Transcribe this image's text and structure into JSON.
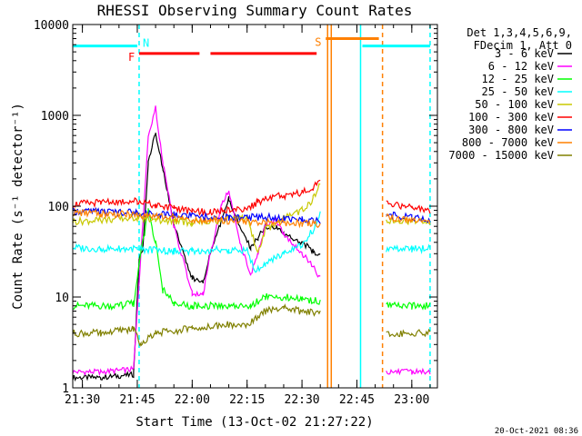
{
  "chart_data": {
    "type": "line",
    "title": "RHESSI Observing Summary Count Rates",
    "xlabel": "Start Time (13-Oct-02 21:27:22)",
    "ylabel": "Count Rate (s⁻¹ detector⁻¹)",
    "y_scale": "log",
    "xlim": [
      "21:27:22",
      "23:07:00"
    ],
    "ylim": [
      1,
      10000
    ],
    "x_ticks": [
      "21:30",
      "21:45",
      "22:00",
      "22:15",
      "22:30",
      "22:45",
      "23:00"
    ],
    "y_ticks": [
      "1",
      "10",
      "100",
      "1000",
      "10000"
    ],
    "legend_position": "top-right",
    "legend_header": [
      "Det 1,3,4,5,6,9,",
      "FDecim 1, Att 0"
    ],
    "timestamp": "20-Oct-2021 08:36",
    "flags": [
      {
        "label": "N",
        "color": "#00ffff",
        "level": 5800,
        "segments": [
          [
            "21:27:22",
            "21:45:00"
          ],
          [
            "22:46:30",
            "23:05:00"
          ]
        ]
      },
      {
        "label": "F",
        "color": "#ff0000",
        "level": 4800,
        "segments": [
          [
            "21:45:30",
            "22:02:00"
          ],
          [
            "22:05:00",
            "22:34:00"
          ]
        ]
      },
      {
        "label": "S",
        "color": "#ff8000",
        "level": 7000,
        "segments": [
          [
            "22:36:30",
            "22:51:00"
          ]
        ]
      }
    ],
    "vertical_markers": [
      {
        "time": "21:45:30",
        "color": "#00ffff",
        "style": "dashed"
      },
      {
        "time": "22:37:00",
        "color": "#ff8000",
        "style": "solid"
      },
      {
        "time": "22:38:00",
        "color": "#ff8000",
        "style": "solid"
      },
      {
        "time": "22:46:00",
        "color": "#00ffff",
        "style": "solid"
      },
      {
        "time": "22:52:00",
        "color": "#ff8000",
        "style": "dashed"
      },
      {
        "time": "23:05:00",
        "color": "#00ffff",
        "style": "dashed"
      }
    ],
    "series": [
      {
        "name": "3 - 6 keV",
        "color": "#000000",
        "x": [
          "21:27:22",
          "21:35",
          "21:44",
          "21:45:30",
          "21:46:30",
          "21:48",
          "21:50",
          "21:52",
          "21:55",
          "22:00",
          "22:03",
          "22:05",
          "22:08",
          "22:10",
          "22:13",
          "22:16",
          "22:18",
          "22:20",
          "22:23",
          "22:25",
          "22:30",
          "22:33",
          "22:35",
          "22:53",
          "23:00",
          "23:05"
        ],
        "y": [
          1.3,
          1.3,
          1.4,
          26,
          32,
          300,
          650,
          250,
          65,
          16,
          15,
          30,
          70,
          120,
          60,
          35,
          45,
          60,
          60,
          50,
          40,
          32,
          28,
          null,
          null,
          null
        ]
      },
      {
        "name": "6 - 12 keV",
        "color": "#ff00ff",
        "x": [
          "21:27:22",
          "21:35",
          "21:44",
          "21:46",
          "21:48",
          "21:50",
          "21:52",
          "21:55",
          "22:00",
          "22:03",
          "22:05",
          "22:08",
          "22:10",
          "22:13",
          "22:16",
          "22:18",
          "22:20",
          "22:23",
          "22:25",
          "22:30",
          "22:33",
          "22:35",
          "22:53",
          "23:00",
          "23:05"
        ],
        "y": [
          1.5,
          1.5,
          1.6,
          30,
          600,
          1200,
          300,
          60,
          11,
          11,
          30,
          100,
          150,
          40,
          18,
          30,
          60,
          70,
          50,
          30,
          22,
          16,
          1.5,
          1.5,
          1.5
        ]
      },
      {
        "name": "12 - 25 keV",
        "color": "#00ff00",
        "x": [
          "21:27:22",
          "21:40",
          "21:44",
          "21:46",
          "21:48",
          "21:50",
          "21:52",
          "21:55",
          "22:00",
          "22:10",
          "22:16",
          "22:18",
          "22:20",
          "22:25",
          "22:30",
          "22:35",
          "22:53",
          "23:00",
          "23:05"
        ],
        "y": [
          8,
          8,
          8.5,
          30,
          90,
          40,
          12,
          8.5,
          8,
          8,
          8,
          9,
          10,
          10,
          9.5,
          9,
          8,
          8,
          8
        ]
      },
      {
        "name": "25 - 50 keV",
        "color": "#00ffff",
        "x": [
          "21:27:22",
          "21:35",
          "21:45",
          "21:50",
          "21:55",
          "22:00",
          "22:05",
          "22:10",
          "22:15",
          "22:17",
          "22:20",
          "22:25",
          "22:30",
          "22:33",
          "22:35",
          "22:53",
          "23:00",
          "23:05"
        ],
        "y": [
          35,
          34,
          34,
          33,
          32,
          32,
          33,
          33,
          33,
          20,
          23,
          30,
          38,
          55,
          80,
          34,
          34,
          34
        ]
      },
      {
        "name": "50 - 100 keV",
        "color": "#c8c800",
        "x": [
          "21:27:22",
          "21:35",
          "21:45",
          "21:50",
          "21:55",
          "22:00",
          "22:05",
          "22:10",
          "22:15",
          "22:18",
          "22:20",
          "22:25",
          "22:30",
          "22:33",
          "22:35",
          "22:53",
          "23:00",
          "23:05"
        ],
        "y": [
          68,
          70,
          75,
          70,
          68,
          67,
          68,
          72,
          75,
          30,
          55,
          75,
          90,
          120,
          180,
          70,
          68,
          66
        ]
      },
      {
        "name": "100 - 300 keV",
        "color": "#ff0000",
        "x": [
          "21:27:22",
          "21:35",
          "21:45",
          "21:50",
          "21:55",
          "22:00",
          "22:05",
          "22:10",
          "22:15",
          "22:18",
          "22:20",
          "22:25",
          "22:30",
          "22:33",
          "22:35",
          "22:53",
          "23:00",
          "23:05"
        ],
        "y": [
          105,
          110,
          115,
          100,
          95,
          88,
          87,
          90,
          95,
          110,
          125,
          130,
          140,
          160,
          210,
          110,
          95,
          90
        ]
      },
      {
        "name": "300 - 800 keV",
        "color": "#0000ff",
        "x": [
          "21:27:22",
          "21:35",
          "21:45",
          "21:50",
          "21:55",
          "22:00",
          "22:05",
          "22:10",
          "22:15",
          "22:20",
          "22:25",
          "22:30",
          "22:35",
          "22:53",
          "23:00",
          "23:05"
        ],
        "y": [
          88,
          87,
          86,
          82,
          80,
          78,
          76,
          75,
          75,
          76,
          73,
          72,
          70,
          80,
          75,
          70
        ]
      },
      {
        "name": "800 - 7000 keV",
        "color": "#ff8000",
        "x": [
          "21:27:22",
          "21:35",
          "21:45",
          "21:50",
          "21:55",
          "22:00",
          "22:05",
          "22:10",
          "22:15",
          "22:20",
          "22:25",
          "22:30",
          "22:35",
          "22:53",
          "23:00",
          "23:05"
        ],
        "y": [
          85,
          83,
          80,
          78,
          75,
          72,
          70,
          69,
          68,
          67,
          66,
          65,
          64,
          75,
          70,
          67
        ]
      },
      {
        "name": "7000 - 15000 keV",
        "color": "#808000",
        "x": [
          "21:27:22",
          "21:35",
          "21:44",
          "21:46",
          "21:50",
          "22:00",
          "22:10",
          "22:15",
          "22:18",
          "22:20",
          "22:25",
          "22:30",
          "22:35",
          "22:53",
          "23:00",
          "23:05"
        ],
        "y": [
          4,
          4,
          4.5,
          3,
          4,
          4.5,
          5,
          5,
          6,
          7,
          7.5,
          7,
          6.5,
          4,
          4,
          4
        ]
      }
    ]
  }
}
